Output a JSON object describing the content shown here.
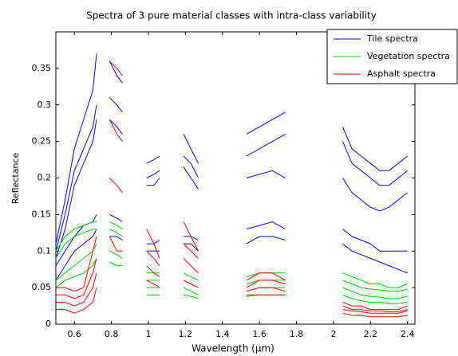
{
  "chart_data": {
    "type": "line",
    "title": "Spectra of 3 pure material classes with intra-class variability",
    "x_label": "Wavelength (µm)",
    "y_label": "Reflectance",
    "x": [
      0.5,
      0.55,
      0.6,
      0.65,
      0.7,
      0.72,
      0.76,
      0.79,
      0.83,
      0.86,
      0.92,
      0.99,
      1.03,
      1.06,
      1.12,
      1.19,
      1.23,
      1.27,
      1.4,
      1.53,
      1.6,
      1.67,
      1.74,
      1.9,
      2.05,
      2.1,
      2.15,
      2.2,
      2.25,
      2.3,
      2.35,
      2.4
    ],
    "xlim": [
      0.5,
      2.44
    ],
    "xticks": [
      0.6,
      0.8,
      1,
      1.2,
      1.4,
      1.6,
      1.8,
      2,
      2.2,
      2.4
    ],
    "ylim": [
      0,
      0.4
    ],
    "yticks": [
      0,
      0.05,
      0.1,
      0.15,
      0.2,
      0.25,
      0.3,
      0.35
    ],
    "legend": "upper right",
    "series": [
      {
        "name": "Tile spectra",
        "color": "#0000ff",
        "values": [
          [
            0.11,
            0.17,
            0.24,
            0.28,
            0.32,
            0.37,
            null,
            0.36,
            0.34,
            0.33,
            null,
            0.22,
            0.225,
            0.23,
            null,
            0.26,
            0.24,
            0.22,
            null,
            0.26,
            0.27,
            0.28,
            0.29,
            null,
            0.27,
            0.24,
            0.23,
            0.22,
            0.21,
            0.21,
            0.22,
            0.23
          ],
          [
            0.1,
            0.15,
            0.21,
            0.24,
            0.27,
            0.3,
            null,
            0.31,
            0.3,
            0.29,
            null,
            0.2,
            0.205,
            0.21,
            null,
            0.23,
            0.22,
            0.2,
            null,
            0.23,
            0.24,
            0.25,
            0.26,
            null,
            0.25,
            0.22,
            0.21,
            0.2,
            0.19,
            0.19,
            0.2,
            0.21
          ],
          [
            0.09,
            0.13,
            0.19,
            0.22,
            0.25,
            0.28,
            null,
            0.28,
            0.27,
            0.26,
            null,
            0.19,
            0.19,
            0.2,
            null,
            0.215,
            0.2,
            0.185,
            null,
            0.2,
            0.205,
            0.21,
            0.2,
            null,
            0.2,
            0.18,
            0.17,
            0.16,
            0.155,
            0.16,
            0.17,
            0.18
          ],
          [
            0.08,
            0.1,
            0.12,
            0.135,
            0.14,
            0.15,
            null,
            0.15,
            0.145,
            0.14,
            null,
            0.11,
            0.11,
            0.115,
            null,
            0.12,
            0.12,
            0.115,
            null,
            0.13,
            0.135,
            0.14,
            0.13,
            null,
            0.13,
            0.12,
            0.115,
            0.11,
            0.1,
            0.1,
            0.1,
            0.1
          ],
          [
            0.06,
            0.08,
            0.1,
            0.11,
            0.12,
            0.13,
            null,
            0.12,
            0.12,
            0.115,
            null,
            0.1,
            0.1,
            0.1,
            null,
            0.11,
            0.11,
            0.1,
            null,
            0.11,
            0.12,
            0.12,
            0.115,
            null,
            0.11,
            0.1,
            0.095,
            0.09,
            0.085,
            0.08,
            0.075,
            0.07
          ]
        ]
      },
      {
        "name": "Vegetation spectra",
        "color": "#00cc00",
        "values": [
          [
            0.1,
            0.12,
            0.13,
            0.135,
            0.14,
            0.14,
            null,
            0.14,
            0.135,
            0.13,
            null,
            0.07,
            0.07,
            0.07,
            null,
            0.07,
            0.065,
            0.06,
            null,
            0.065,
            0.07,
            0.07,
            0.07,
            null,
            0.07,
            0.065,
            0.06,
            0.055,
            0.055,
            0.05,
            0.05,
            0.055
          ],
          [
            0.09,
            0.11,
            0.12,
            0.125,
            0.13,
            0.13,
            null,
            0.13,
            0.125,
            0.12,
            null,
            0.06,
            0.06,
            0.06,
            null,
            0.06,
            0.055,
            0.05,
            null,
            0.055,
            0.06,
            0.06,
            0.06,
            null,
            0.06,
            0.055,
            0.05,
            0.048,
            0.047,
            0.045,
            0.045,
            0.048
          ],
          [
            0.06,
            0.07,
            0.08,
            0.09,
            0.1,
            0.11,
            null,
            0.1,
            0.095,
            0.09,
            null,
            0.05,
            0.05,
            0.05,
            null,
            0.05,
            0.045,
            0.04,
            null,
            0.045,
            0.05,
            0.05,
            0.05,
            null,
            0.05,
            0.045,
            0.04,
            0.038,
            0.037,
            0.035,
            0.035,
            0.038
          ],
          [
            0.05,
            0.06,
            0.065,
            0.07,
            0.08,
            0.09,
            null,
            0.085,
            0.08,
            0.08,
            null,
            0.04,
            0.04,
            0.04,
            null,
            0.04,
            0.038,
            0.035,
            null,
            0.038,
            0.04,
            0.04,
            0.04,
            null,
            0.04,
            0.035,
            0.032,
            0.03,
            0.03,
            0.028,
            0.028,
            0.03
          ]
        ]
      },
      {
        "name": "Asphalt spectra",
        "color": "#ff0000",
        "values": [
          [
            0.05,
            0.05,
            0.045,
            0.05,
            0.1,
            0.12,
            null,
            0.36,
            0.35,
            0.34,
            null,
            0.13,
            0.11,
            0.09,
            null,
            0.14,
            0.12,
            0.1,
            null,
            0.06,
            0.07,
            0.07,
            0.06,
            null,
            0.03,
            0.025,
            0.025,
            0.02,
            0.02,
            0.02,
            0.02,
            0.025
          ],
          [
            0.04,
            0.04,
            0.035,
            0.04,
            0.07,
            0.09,
            null,
            0.28,
            0.26,
            0.25,
            null,
            0.1,
            0.09,
            0.08,
            null,
            0.11,
            0.1,
            0.09,
            null,
            0.05,
            0.06,
            0.06,
            0.055,
            null,
            0.025,
            0.02,
            0.02,
            0.018,
            0.018,
            0.017,
            0.017,
            0.02
          ],
          [
            0.03,
            0.03,
            0.025,
            0.03,
            0.05,
            0.07,
            null,
            0.2,
            0.19,
            0.18,
            null,
            0.08,
            0.07,
            0.065,
            null,
            0.09,
            0.08,
            0.07,
            null,
            0.045,
            0.05,
            0.05,
            0.045,
            null,
            0.02,
            0.018,
            0.017,
            0.015,
            0.015,
            0.015,
            0.015,
            0.018
          ],
          [
            0.02,
            0.02,
            0.015,
            0.02,
            0.03,
            0.05,
            null,
            0.12,
            0.1,
            0.1,
            null,
            0.06,
            0.055,
            0.05,
            null,
            0.06,
            0.055,
            0.05,
            null,
            0.04,
            0.04,
            0.04,
            0.04,
            null,
            0.015,
            0.012,
            0.012,
            0.01,
            0.01,
            0.01,
            0.01,
            0.012
          ]
        ]
      }
    ]
  }
}
